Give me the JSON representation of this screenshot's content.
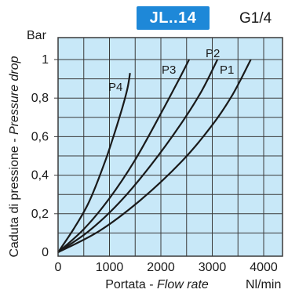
{
  "header": {
    "model": "JL..14",
    "thread": "G1/4"
  },
  "colors": {
    "badge": "#1e88d8",
    "plot_background": "#c8e8f8",
    "grid": "#3a3a3a",
    "curve": "#1a1a1a"
  },
  "chart_data": {
    "type": "line",
    "title": "",
    "ylabel_text": "Caduta di pressione - ",
    "ylabel_italic": "Pressure drop",
    "xlabel_text": "Portata - ",
    "xlabel_italic": "Flow rate",
    "y_unit": "Bar",
    "x_unit": "Nl/min",
    "xlim": [
      0,
      4500
    ],
    "ylim": [
      0,
      1.1
    ],
    "x_ticks": [
      "0",
      "1000",
      "2000",
      "3000",
      "4000"
    ],
    "y_ticks": [
      "0",
      "0,2",
      "0,4",
      "0,6",
      "0,8",
      "1"
    ],
    "grid": true,
    "series": [
      {
        "name": "P4",
        "x": [
          0,
          300,
          600,
          900,
          1100,
          1250,
          1350,
          1400
        ],
        "y": [
          0,
          0.12,
          0.26,
          0.46,
          0.62,
          0.75,
          0.85,
          0.93
        ]
      },
      {
        "name": "P3",
        "x": [
          0,
          500,
          1000,
          1500,
          2000,
          2300,
          2550
        ],
        "y": [
          0,
          0.12,
          0.28,
          0.48,
          0.72,
          0.87,
          1.0
        ]
      },
      {
        "name": "P2",
        "x": [
          0,
          600,
          1200,
          1800,
          2400,
          2800,
          3100
        ],
        "y": [
          0,
          0.11,
          0.26,
          0.45,
          0.67,
          0.84,
          1.0
        ]
      },
      {
        "name": "P1",
        "x": [
          0,
          800,
          1600,
          2400,
          3000,
          3400,
          3750
        ],
        "y": [
          0,
          0.11,
          0.27,
          0.47,
          0.66,
          0.82,
          1.0
        ]
      }
    ]
  }
}
